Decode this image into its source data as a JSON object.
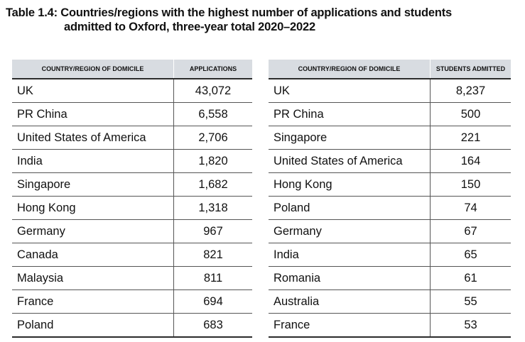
{
  "title": {
    "line1": "Table 1.4: Countries/regions with the highest number of applications and students",
    "line2": "admitted to Oxford, three-year total 2020–2022"
  },
  "applications_table": {
    "headers": [
      "COUNTRY/REGION OF DOMICILE",
      "APPLICATIONS"
    ],
    "rows": [
      {
        "country": "UK",
        "value": "43,072"
      },
      {
        "country": "PR China",
        "value": "6,558"
      },
      {
        "country": "United States of America",
        "value": "2,706"
      },
      {
        "country": "India",
        "value": "1,820"
      },
      {
        "country": "Singapore",
        "value": "1,682"
      },
      {
        "country": "Hong Kong",
        "value": "1,318"
      },
      {
        "country": "Germany",
        "value": "967"
      },
      {
        "country": "Canada",
        "value": "821"
      },
      {
        "country": "Malaysia",
        "value": "811"
      },
      {
        "country": "France",
        "value": "694"
      },
      {
        "country": "Poland",
        "value": "683"
      }
    ]
  },
  "admitted_table": {
    "headers": [
      "COUNTRY/REGION OF DOMICILE",
      "STUDENTS ADMITTED"
    ],
    "rows": [
      {
        "country": "UK",
        "value": "8,237"
      },
      {
        "country": "PR China",
        "value": "500"
      },
      {
        "country": "Singapore",
        "value": "221"
      },
      {
        "country": "United States of America",
        "value": "164"
      },
      {
        "country": "Hong Kong",
        "value": "150"
      },
      {
        "country": "Poland",
        "value": "74"
      },
      {
        "country": "Germany",
        "value": "67"
      },
      {
        "country": "India",
        "value": "65"
      },
      {
        "country": "Romania",
        "value": "61"
      },
      {
        "country": "Australia",
        "value": "55"
      },
      {
        "country": "France",
        "value": "53"
      }
    ]
  }
}
